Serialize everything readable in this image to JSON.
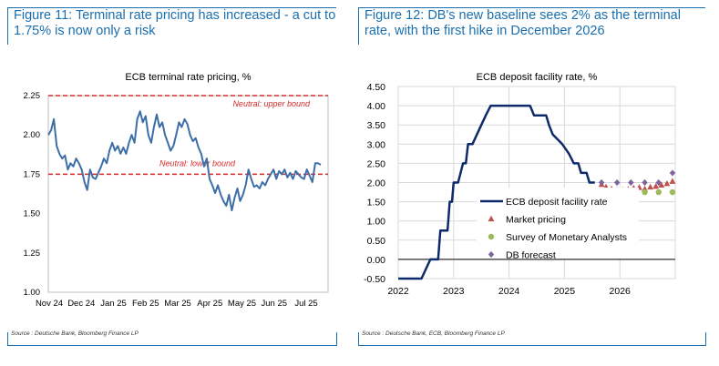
{
  "left_panel": {
    "figure_title": "Figure 11: Terminal rate pricing has increased - a cut to 1.75% is now only a risk",
    "source": "Source : Deutsche Bank, Bloomberg Finance LP"
  },
  "right_panel": {
    "figure_title": "Figure 12: DB's new baseline sees 2% as the terminal rate, with the first hike in December 2026",
    "source": "Source : Deutsche Bank, ECB, Bloomberg Finance LP"
  },
  "chart_data": [
    {
      "type": "line",
      "title": "ECB terminal rate pricing, %",
      "x_tick_labels": [
        "Nov 24",
        "Dec 24",
        "Jan 25",
        "Feb 25",
        "Mar 25",
        "Apr 25",
        "May 25",
        "Jun 25",
        "Jul 25"
      ],
      "y_tick_labels": [
        "1.00",
        "1.25",
        "1.50",
        "1.75",
        "2.00",
        "2.25"
      ],
      "ylim": [
        1.0,
        2.25
      ],
      "grid": false,
      "line_color": "#3d6ea8",
      "reference_lines": [
        {
          "value": 2.25,
          "label": "Neutral: upper bound",
          "color": "#d42a2a"
        },
        {
          "value": 1.75,
          "label": "Neutral: lower bound",
          "color": "#d42a2a"
        }
      ],
      "series": [
        {
          "values": [
            2.0,
            2.03,
            2.1,
            1.93,
            1.88,
            1.85,
            1.87,
            1.78,
            1.82,
            1.8,
            1.85,
            1.82,
            1.78,
            1.7,
            1.65,
            1.78,
            1.73,
            1.72,
            1.76,
            1.8,
            1.85,
            1.82,
            1.9,
            1.95,
            1.9,
            1.93,
            1.88,
            1.92,
            1.88,
            1.95,
            2.0,
            1.95,
            2.1,
            2.15,
            2.08,
            2.12,
            2.0,
            1.95,
            2.05,
            2.13,
            2.05,
            2.08,
            2.0,
            1.95,
            1.9,
            1.93,
            2.0,
            2.08,
            2.05,
            2.1,
            2.07,
            2.0,
            1.96,
            1.98,
            1.92,
            1.88,
            1.8,
            1.85,
            1.72,
            1.68,
            1.63,
            1.68,
            1.62,
            1.58,
            1.55,
            1.62,
            1.52,
            1.6,
            1.66,
            1.58,
            1.62,
            1.68,
            1.78,
            1.72,
            1.67,
            1.68,
            1.66,
            1.7,
            1.68,
            1.72,
            1.75,
            1.78,
            1.72,
            1.77,
            1.75,
            1.78,
            1.73,
            1.76,
            1.72,
            1.77,
            1.75,
            1.73,
            1.72,
            1.78,
            1.74,
            1.7,
            1.82,
            1.82,
            1.81
          ]
        }
      ]
    },
    {
      "type": "line",
      "title": "ECB deposit facility rate, %",
      "x_tick_labels": [
        "2022",
        "2023",
        "2024",
        "2025",
        "2026"
      ],
      "y_tick_labels": [
        "-0.50",
        "0.00",
        "0.50",
        "1.00",
        "1.50",
        "2.00",
        "2.50",
        "3.00",
        "3.50",
        "4.00",
        "4.50"
      ],
      "xlim": [
        2022,
        2027
      ],
      "ylim": [
        -0.5,
        4.5
      ],
      "grid": true,
      "legend_placement": "right",
      "series": [
        {
          "name": "ECB deposit facility rate",
          "style": "line",
          "color": "#0d2a6b",
          "points": [
            [
              2022.0,
              -0.5
            ],
            [
              2022.42,
              -0.5
            ],
            [
              2022.58,
              0.0
            ],
            [
              2022.72,
              0.0
            ],
            [
              2022.76,
              0.75
            ],
            [
              2022.89,
              0.75
            ],
            [
              2022.93,
              1.5
            ],
            [
              2022.97,
              1.5
            ],
            [
              2023.0,
              2.0
            ],
            [
              2023.08,
              2.0
            ],
            [
              2023.17,
              2.5
            ],
            [
              2023.22,
              2.5
            ],
            [
              2023.26,
              3.0
            ],
            [
              2023.34,
              3.0
            ],
            [
              2023.42,
              3.25
            ],
            [
              2023.5,
              3.5
            ],
            [
              2023.58,
              3.75
            ],
            [
              2023.67,
              4.0
            ],
            [
              2024.38,
              4.0
            ],
            [
              2024.45,
              3.75
            ],
            [
              2024.67,
              3.75
            ],
            [
              2024.72,
              3.5
            ],
            [
              2024.79,
              3.25
            ],
            [
              2024.96,
              3.0
            ],
            [
              2025.08,
              2.75
            ],
            [
              2025.17,
              2.5
            ],
            [
              2025.25,
              2.5
            ],
            [
              2025.3,
              2.25
            ],
            [
              2025.4,
              2.25
            ],
            [
              2025.45,
              2.0
            ],
            [
              2025.55,
              2.0
            ]
          ]
        },
        {
          "name": "Market pricing",
          "style": "marker",
          "marker": "triangle",
          "color": "#c0504d",
          "points": [
            [
              2025.67,
              1.95
            ],
            [
              2025.75,
              1.88
            ],
            [
              2025.85,
              1.83
            ],
            [
              2025.95,
              1.8
            ],
            [
              2026.05,
              1.8
            ],
            [
              2026.15,
              1.82
            ],
            [
              2026.25,
              1.85
            ],
            [
              2026.35,
              1.87
            ],
            [
              2026.45,
              1.83
            ],
            [
              2026.55,
              1.88
            ],
            [
              2026.65,
              1.9
            ],
            [
              2026.75,
              1.93
            ],
            [
              2026.85,
              1.97
            ],
            [
              2026.95,
              2.03
            ]
          ]
        },
        {
          "name": "Survey of Monetary Analysts",
          "style": "marker",
          "marker": "circle",
          "color": "#9bbb59",
          "points": [
            [
              2025.67,
              1.75
            ],
            [
              2025.95,
              1.75
            ],
            [
              2026.2,
              1.75
            ],
            [
              2026.45,
              1.75
            ],
            [
              2026.7,
              1.75
            ],
            [
              2026.95,
              1.75
            ]
          ]
        },
        {
          "name": "DB forecast",
          "style": "marker",
          "marker": "diamond",
          "color": "#8064a2",
          "points": [
            [
              2025.67,
              2.0
            ],
            [
              2025.95,
              2.0
            ],
            [
              2026.2,
              2.0
            ],
            [
              2026.45,
              2.0
            ],
            [
              2026.7,
              2.0
            ],
            [
              2026.95,
              2.25
            ]
          ]
        }
      ]
    }
  ]
}
